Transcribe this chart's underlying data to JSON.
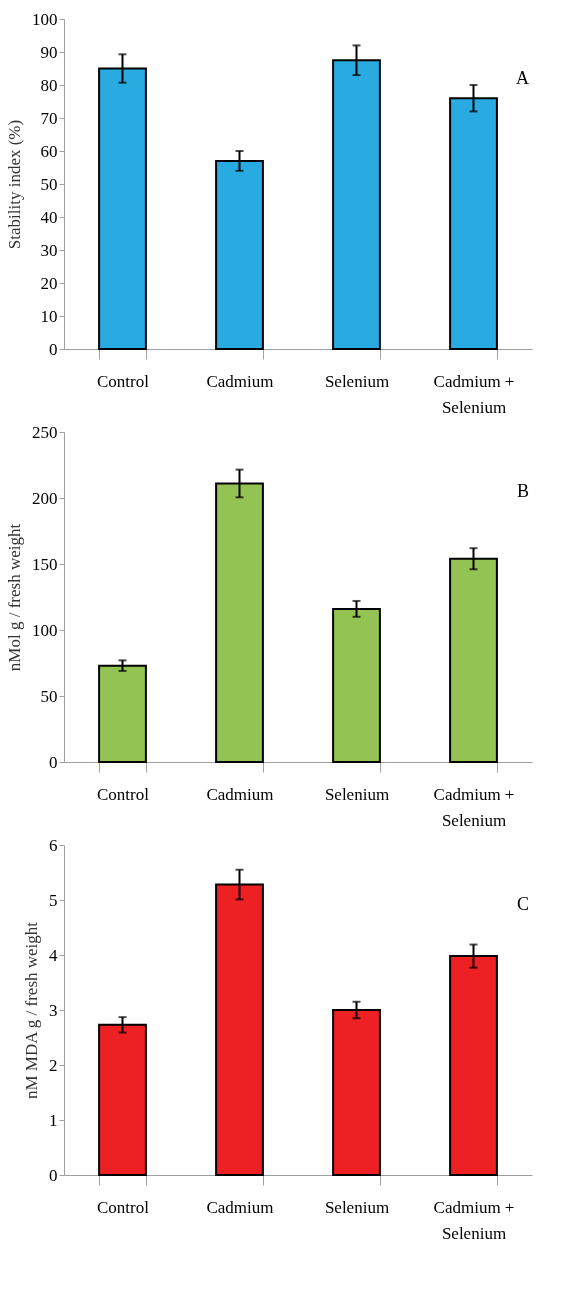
{
  "chart_data": [
    {
      "type": "bar",
      "categories": [
        "Control",
        "Cadmium",
        "Selenium",
        "Cadmium + Selenium"
      ],
      "values": [
        85,
        57,
        87.5,
        76
      ],
      "errors": [
        4.3,
        3,
        4.5,
        4
      ],
      "color": "#29abe2",
      "ylabel": "Stability index (%)",
      "ylim": [
        0,
        100
      ],
      "yticks": [
        0,
        10,
        20,
        30,
        40,
        50,
        60,
        70,
        80,
        90,
        100
      ],
      "annotations": [
        "A"
      ],
      "grid": false
    },
    {
      "type": "bar",
      "categories": [
        "Control",
        "Cadmium",
        "Selenium",
        "Cadmium + Selenium"
      ],
      "values": [
        73,
        211,
        116,
        154
      ],
      "errors": [
        4,
        10.5,
        6,
        8
      ],
      "color": "#92c353",
      "ylabel": "nMol g / fresh weight",
      "ylim": [
        0,
        250
      ],
      "yticks": [
        0,
        50,
        100,
        150,
        200,
        250
      ],
      "annotations": [
        "B"
      ],
      "grid": false
    },
    {
      "type": "bar",
      "categories": [
        "Control",
        "Cadmium",
        "Selenium",
        "Cadmium + Selenium"
      ],
      "values": [
        2.73,
        5.28,
        3.0,
        3.98
      ],
      "errors": [
        0.14,
        0.27,
        0.15,
        0.21
      ],
      "color": "#ed2024",
      "ylabel": "nM MDA g /  fresh weight",
      "ylim": [
        0,
        6
      ],
      "yticks": [
        0,
        1,
        2,
        3,
        4,
        5,
        6
      ],
      "annotations": [
        "C"
      ],
      "grid": false
    }
  ]
}
